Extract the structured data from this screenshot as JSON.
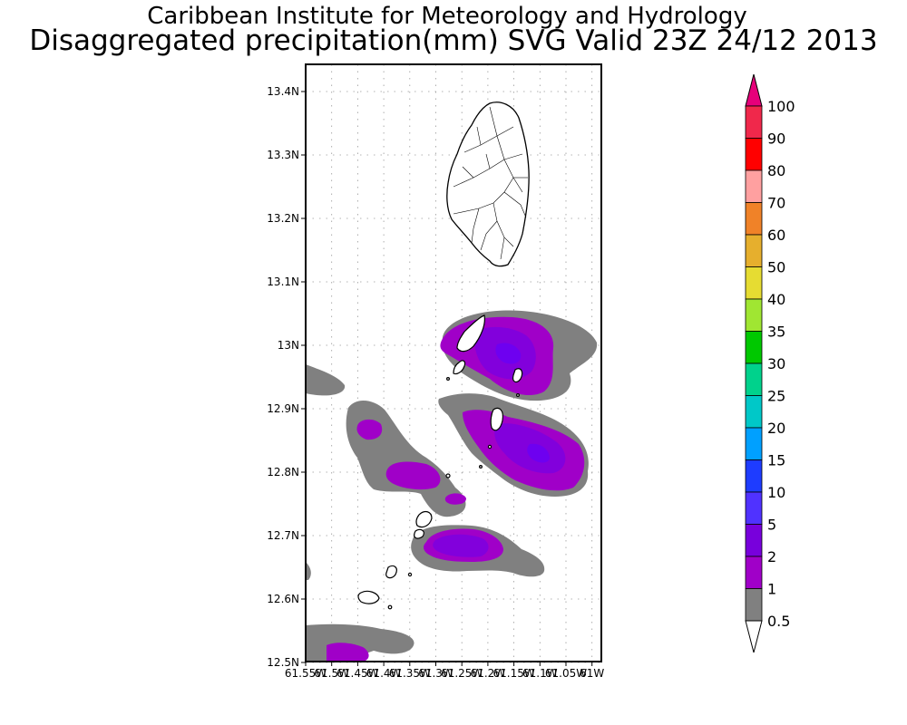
{
  "header": {
    "institute": "Caribbean Institute for Meteorology and Hydrology",
    "product": "Disaggregated precipitation(mm) SVG Valid 23Z 24/12 2013"
  },
  "map": {
    "lat_labels": [
      "13.4N",
      "13.3N",
      "13.2N",
      "13.1N",
      "13N",
      "12.9N",
      "12.8N",
      "12.7N",
      "12.6N",
      "12.5N"
    ],
    "lon_labels": [
      "61.55W",
      "61.5W",
      "61.45W",
      "61.4W",
      "61.35W",
      "61.3W",
      "61.25W",
      "61.2W",
      "61.15W",
      "61.1W",
      "61.05W",
      "61W"
    ],
    "colors": {
      "c0_5": "#808080",
      "c1": "#a000c8",
      "c2": "#8200dc",
      "c5": "#6e00f0"
    }
  },
  "colorbar": {
    "labels": [
      "100",
      "90",
      "80",
      "70",
      "60",
      "50",
      "40",
      "35",
      "30",
      "25",
      "20",
      "15",
      "10",
      "5",
      "2",
      "1",
      "0.5"
    ],
    "colors": [
      "#f0284b",
      "#ff0000",
      "#ffa0a0",
      "#f08228",
      "#e6af2d",
      "#e6dc32",
      "#a0e632",
      "#00c800",
      "#00d28c",
      "#00c8c8",
      "#00a0ff",
      "#1e3cff",
      "#5032ff",
      "#7800dc",
      "#a000c8",
      "#808080"
    ],
    "top_color": "#e6007a",
    "bottom_color": "#ffffff"
  }
}
